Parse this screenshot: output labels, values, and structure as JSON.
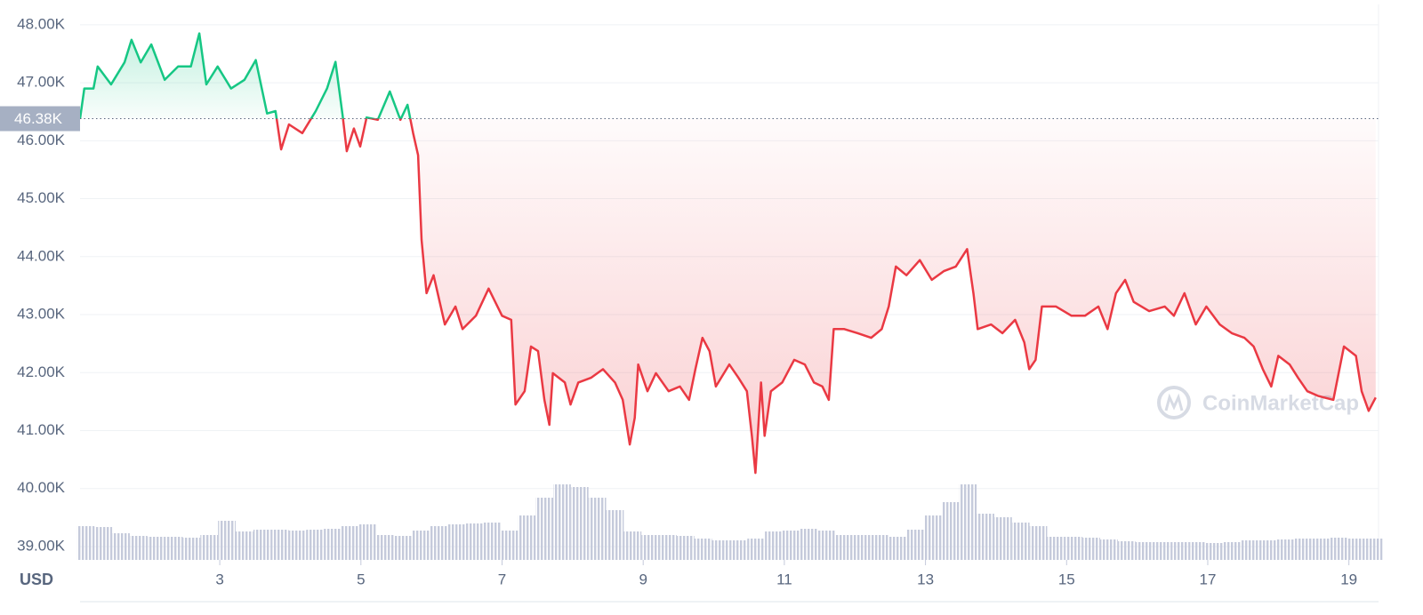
{
  "chart_data": {
    "type": "line",
    "y_label": "USD",
    "watermark": "CoinMarketCap",
    "xlim": [
      1.02,
      19.42
    ],
    "xticks": [
      3,
      5,
      7,
      9,
      11,
      13,
      15,
      17,
      19
    ],
    "ylim": [
      38770,
      48350
    ],
    "yticks": [
      {
        "value": 39000,
        "label": "39.00K"
      },
      {
        "value": 40000,
        "label": "40.00K"
      },
      {
        "value": 41000,
        "label": "41.00K"
      },
      {
        "value": 42000,
        "label": "42.00K"
      },
      {
        "value": 43000,
        "label": "43.00K"
      },
      {
        "value": 44000,
        "label": "44.00K"
      },
      {
        "value": 45000,
        "label": "45.00K"
      },
      {
        "value": 46000,
        "label": "46.00K"
      },
      {
        "value": 47000,
        "label": "47.00K"
      },
      {
        "value": 48000,
        "label": "48.00K"
      }
    ],
    "y2lim": [
      0,
      100
    ],
    "grid": true,
    "reference_line": {
      "value": 46380,
      "label": "46.38K"
    },
    "series": [
      {
        "type": "line",
        "colors": {
          "above": "#16c784",
          "below": "#ea3943"
        },
        "x": [
          1.02,
          1.08,
          1.21,
          1.27,
          1.46,
          1.65,
          1.75,
          1.88,
          2.03,
          2.22,
          2.41,
          2.59,
          2.71,
          2.81,
          2.97,
          3.16,
          3.35,
          3.51,
          3.67,
          3.79,
          3.87,
          3.98,
          4.17,
          4.36,
          4.52,
          4.64,
          4.74,
          4.8,
          4.9,
          4.99,
          5.08,
          5.24,
          5.41,
          5.56,
          5.66,
          5.74,
          5.81,
          5.86,
          5.93,
          6.03,
          6.19,
          6.34,
          6.44,
          6.63,
          6.81,
          7.0,
          7.13,
          7.19,
          7.32,
          7.41,
          7.51,
          7.6,
          7.67,
          7.72,
          7.89,
          7.97,
          8.08,
          8.26,
          8.43,
          8.6,
          8.71,
          8.81,
          8.88,
          8.93,
          9.06,
          9.18,
          9.36,
          9.52,
          9.65,
          9.74,
          9.84,
          9.94,
          10.03,
          10.22,
          10.35,
          10.47,
          10.54,
          10.59,
          10.67,
          10.72,
          10.81,
          10.97,
          11.14,
          11.29,
          11.42,
          11.54,
          11.63,
          11.7,
          11.85,
          12.04,
          12.23,
          12.38,
          12.48,
          12.58,
          12.73,
          12.92,
          13.09,
          13.26,
          13.43,
          13.59,
          13.68,
          13.74,
          13.93,
          14.09,
          14.27,
          14.4,
          14.47,
          14.56,
          14.65,
          14.85,
          15.07,
          15.26,
          15.45,
          15.58,
          15.7,
          15.83,
          15.95,
          16.17,
          16.39,
          16.52,
          16.67,
          16.83,
          16.98,
          17.17,
          17.34,
          17.52,
          17.65,
          17.78,
          17.9,
          18.0,
          18.16,
          18.28,
          18.41,
          18.56,
          18.78,
          18.93,
          19.1,
          19.18,
          19.28,
          19.38
        ],
        "values": [
          46380,
          46900,
          46900,
          47280,
          46970,
          47350,
          47740,
          47350,
          47660,
          47050,
          47280,
          47280,
          47850,
          46970,
          47280,
          46900,
          47050,
          47390,
          46470,
          46510,
          45850,
          46280,
          46130,
          46510,
          46900,
          47360,
          46440,
          45820,
          46210,
          45900,
          46400,
          46360,
          46850,
          46360,
          46620,
          46130,
          45750,
          44290,
          43370,
          43680,
          42830,
          43140,
          42750,
          42980,
          43450,
          42980,
          42910,
          41450,
          41680,
          42450,
          42370,
          41530,
          41100,
          41990,
          41830,
          41450,
          41830,
          41910,
          42060,
          41830,
          41530,
          40760,
          41220,
          42140,
          41680,
          41990,
          41680,
          41760,
          41530,
          42060,
          42600,
          42370,
          41760,
          42140,
          41910,
          41680,
          40910,
          40270,
          41830,
          40910,
          41680,
          41830,
          42220,
          42140,
          41830,
          41760,
          41530,
          42750,
          42750,
          42680,
          42600,
          42750,
          43140,
          43830,
          43680,
          43940,
          43600,
          43750,
          43830,
          44130,
          43370,
          42750,
          42830,
          42680,
          42910,
          42520,
          42060,
          42220,
          43140,
          43140,
          42980,
          42980,
          43140,
          42750,
          43370,
          43600,
          43220,
          43060,
          43140,
          42980,
          43370,
          42830,
          43140,
          42830,
          42680,
          42600,
          42450,
          42060,
          41760,
          42290,
          42140,
          41910,
          41680,
          41600,
          41530,
          42450,
          42290,
          41680,
          41340,
          41570
        ]
      },
      {
        "type": "bar",
        "axis": "y2",
        "color": "#c5cadb",
        "x": [
          1.1,
          1.35,
          1.6,
          1.85,
          2.1,
          2.35,
          2.6,
          2.85,
          3.1,
          3.35,
          3.6,
          3.85,
          4.1,
          4.35,
          4.6,
          4.85,
          5.1,
          5.35,
          5.6,
          5.85,
          6.1,
          6.35,
          6.6,
          6.85,
          7.1,
          7.35,
          7.6,
          7.85,
          8.1,
          8.35,
          8.6,
          8.85,
          9.1,
          9.35,
          9.6,
          9.85,
          10.1,
          10.35,
          10.6,
          10.85,
          11.1,
          11.35,
          11.6,
          11.85,
          12.1,
          12.35,
          12.6,
          12.85,
          13.1,
          13.35,
          13.6,
          13.85,
          14.1,
          14.35,
          14.6,
          14.85,
          15.1,
          15.35,
          15.6,
          15.85,
          16.1,
          16.35,
          16.6,
          16.85,
          17.1,
          17.35,
          17.6,
          17.85,
          18.1,
          18.35,
          18.6,
          18.85,
          19.1,
          19.35
        ],
        "values": [
          38,
          37,
          30,
          27,
          26,
          26,
          25,
          28,
          44,
          32,
          34,
          34,
          33,
          34,
          35,
          38,
          40,
          28,
          27,
          33,
          38,
          40,
          41,
          42,
          33,
          50,
          70,
          85,
          82,
          70,
          56,
          32,
          28,
          28,
          27,
          24,
          22,
          22,
          24,
          32,
          33,
          35,
          33,
          28,
          28,
          28,
          26,
          34,
          50,
          65,
          85,
          52,
          48,
          42,
          38,
          26,
          26,
          25,
          23,
          21,
          20,
          20,
          20,
          20,
          19,
          20,
          22,
          22,
          23,
          24,
          24,
          25,
          24,
          24
        ]
      }
    ]
  }
}
